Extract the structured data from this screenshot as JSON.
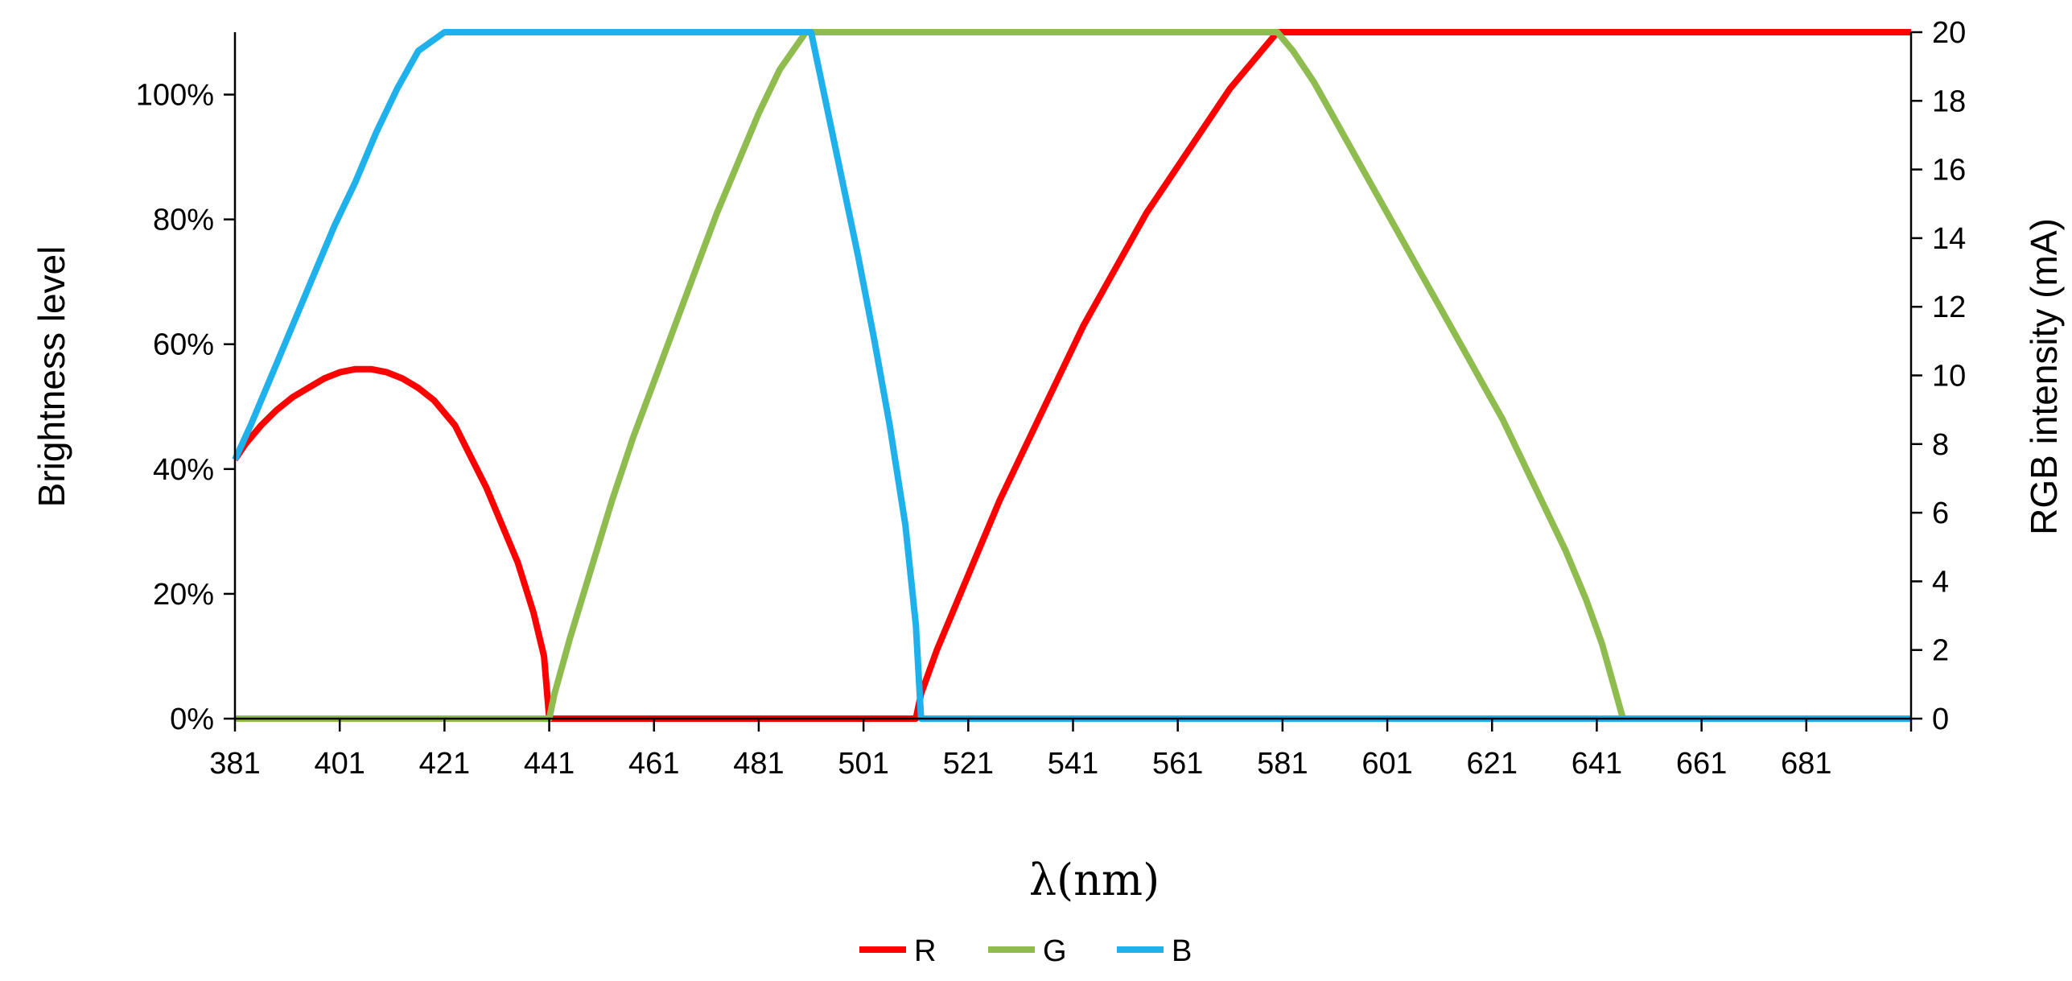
{
  "chart_data": {
    "type": "line",
    "title": "",
    "xlabel": "λ(nm)",
    "ylabel": "Brightness level",
    "y2label": "RGB intensity (mA)",
    "xlim": [
      381,
      701
    ],
    "ylim": [
      0,
      1.1
    ],
    "y2lim": [
      0,
      20
    ],
    "x_tick_labels": [
      "381",
      "401",
      "421",
      "441",
      "461",
      "481",
      "501",
      "521",
      "541",
      "561",
      "581",
      "601",
      "621",
      "641",
      "661",
      "681"
    ],
    "y_tick_labels": [
      "0%",
      "20%",
      "40%",
      "60%",
      "80%",
      "100%"
    ],
    "y_tick_values": [
      0,
      0.2,
      0.4,
      0.6,
      0.8,
      1.0
    ],
    "y2_tick_labels": [
      "0",
      "2",
      "4",
      "6",
      "8",
      "10",
      "12",
      "14",
      "16",
      "18",
      "20"
    ],
    "y2_tick_values": [
      0,
      2,
      4,
      6,
      8,
      10,
      12,
      14,
      16,
      18,
      20
    ],
    "grid": false,
    "legend_position": "bottom-center",
    "series": [
      {
        "name": "R",
        "color": "#ff0000",
        "points": [
          [
            381,
            0.415
          ],
          [
            383,
            0.44
          ],
          [
            386,
            0.47
          ],
          [
            389,
            0.495
          ],
          [
            392,
            0.515
          ],
          [
            395,
            0.53
          ],
          [
            398,
            0.545
          ],
          [
            401,
            0.555
          ],
          [
            404,
            0.56
          ],
          [
            407,
            0.56
          ],
          [
            410,
            0.555
          ],
          [
            413,
            0.545
          ],
          [
            416,
            0.53
          ],
          [
            419,
            0.51
          ],
          [
            421,
            0.49
          ],
          [
            423,
            0.47
          ],
          [
            426,
            0.42
          ],
          [
            429,
            0.37
          ],
          [
            432,
            0.31
          ],
          [
            435,
            0.25
          ],
          [
            438,
            0.17
          ],
          [
            440,
            0.1
          ],
          [
            441,
            0.0
          ],
          [
            511,
            0.0
          ],
          [
            512,
            0.04
          ],
          [
            515,
            0.11
          ],
          [
            519,
            0.19
          ],
          [
            523,
            0.27
          ],
          [
            527,
            0.35
          ],
          [
            531,
            0.42
          ],
          [
            535,
            0.49
          ],
          [
            539,
            0.56
          ],
          [
            543,
            0.63
          ],
          [
            547,
            0.69
          ],
          [
            551,
            0.75
          ],
          [
            555,
            0.81
          ],
          [
            559,
            0.86
          ],
          [
            563,
            0.91
          ],
          [
            567,
            0.96
          ],
          [
            571,
            1.01
          ],
          [
            575,
            1.05
          ],
          [
            580,
            1.1
          ],
          [
            701,
            1.1
          ]
        ]
      },
      {
        "name": "G",
        "color": "#8fbc4f",
        "points": [
          [
            381,
            0.0
          ],
          [
            441,
            0.0
          ],
          [
            442,
            0.04
          ],
          [
            445,
            0.13
          ],
          [
            449,
            0.24
          ],
          [
            453,
            0.35
          ],
          [
            457,
            0.45
          ],
          [
            461,
            0.54
          ],
          [
            465,
            0.63
          ],
          [
            469,
            0.72
          ],
          [
            473,
            0.81
          ],
          [
            477,
            0.89
          ],
          [
            481,
            0.97
          ],
          [
            485,
            1.04
          ],
          [
            490,
            1.1
          ],
          [
            580,
            1.1
          ],
          [
            583,
            1.07
          ],
          [
            587,
            1.02
          ],
          [
            591,
            0.96
          ],
          [
            595,
            0.9
          ],
          [
            599,
            0.84
          ],
          [
            603,
            0.78
          ],
          [
            607,
            0.72
          ],
          [
            611,
            0.66
          ],
          [
            615,
            0.6
          ],
          [
            619,
            0.54
          ],
          [
            623,
            0.48
          ],
          [
            627,
            0.41
          ],
          [
            631,
            0.34
          ],
          [
            635,
            0.27
          ],
          [
            639,
            0.19
          ],
          [
            642,
            0.12
          ],
          [
            644,
            0.06
          ],
          [
            646,
            0.0
          ],
          [
            701,
            0.0
          ]
        ]
      },
      {
        "name": "B",
        "color": "#1eb1ec",
        "points": [
          [
            381,
            0.415
          ],
          [
            384,
            0.47
          ],
          [
            388,
            0.55
          ],
          [
            392,
            0.63
          ],
          [
            396,
            0.71
          ],
          [
            400,
            0.79
          ],
          [
            404,
            0.86
          ],
          [
            408,
            0.94
          ],
          [
            412,
            1.01
          ],
          [
            416,
            1.07
          ],
          [
            421,
            1.1
          ],
          [
            491,
            1.1
          ],
          [
            494,
            0.98
          ],
          [
            497,
            0.86
          ],
          [
            500,
            0.74
          ],
          [
            503,
            0.61
          ],
          [
            506,
            0.47
          ],
          [
            509,
            0.31
          ],
          [
            511,
            0.15
          ],
          [
            512,
            0.0
          ],
          [
            701,
            0.0
          ]
        ]
      }
    ]
  }
}
